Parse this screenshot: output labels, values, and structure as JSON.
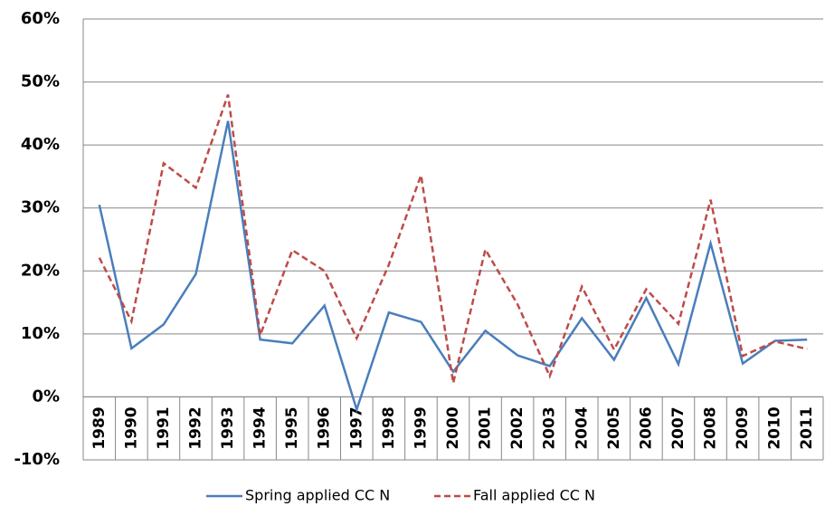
{
  "chart_data": {
    "type": "line",
    "categories": [
      "1989",
      "1990",
      "1991",
      "1992",
      "1993",
      "1994",
      "1995",
      "1996",
      "1997",
      "1998",
      "1999",
      "2000",
      "2001",
      "2002",
      "2003",
      "2004",
      "2005",
      "2006",
      "2007",
      "2008",
      "2009",
      "2010",
      "2011"
    ],
    "series": [
      {
        "name": "Spring applied CC N",
        "color": "#4a7ebb",
        "dash": "solid",
        "values": [
          30.5,
          7.7,
          11.5,
          19.5,
          43.8,
          9.1,
          8.5,
          14.5,
          -2,
          13.4,
          11.9,
          4.0,
          10.5,
          6.6,
          4.9,
          12.5,
          5.9,
          15.7,
          5.2,
          24.4,
          5.3,
          8.9,
          9.1
        ]
      },
      {
        "name": "Fall applied CC N",
        "color": "#be4b48",
        "dash": "dashed",
        "values": [
          22.1,
          12,
          37.1,
          33.2,
          48,
          9.8,
          23.3,
          20,
          9.3,
          21,
          35.2,
          2.2,
          23.4,
          14.7,
          3.3,
          17.5,
          7.5,
          17.1,
          11.6,
          31.3,
          6.5,
          8.8,
          7.6
        ]
      }
    ],
    "ylim": [
      -10,
      60
    ],
    "yticks": [
      {
        "value": -10,
        "label": "-10%"
      },
      {
        "value": 0,
        "label": "0%"
      },
      {
        "value": 10,
        "label": "10%"
      },
      {
        "value": 20,
        "label": "20%"
      },
      {
        "value": 30,
        "label": "30%"
      },
      {
        "value": 40,
        "label": "40%"
      },
      {
        "value": 50,
        "label": "50%"
      },
      {
        "value": 60,
        "label": "60%"
      }
    ],
    "grid": true,
    "legend": "bottom"
  }
}
